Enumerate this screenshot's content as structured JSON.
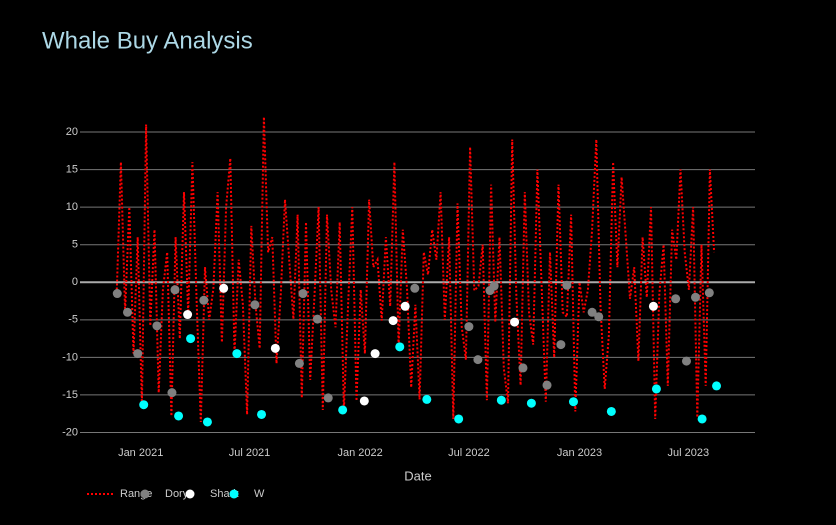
{
  "chart_data": {
    "type": "line",
    "title": "Whale Buy Analysis",
    "x_label": "Date",
    "xlim": [
      "2020-09-22",
      "2023-10-20"
    ],
    "xticks": [
      {
        "value": "2021-01-01",
        "label": "Jan 2021"
      },
      {
        "value": "2021-07-01",
        "label": "Jul 2021"
      },
      {
        "value": "2022-01-01",
        "label": "Jan 2022"
      },
      {
        "value": "2022-07-01",
        "label": "Jul 2022"
      },
      {
        "value": "2023-01-01",
        "label": "Jan 2023"
      },
      {
        "value": "2023-07-01",
        "label": "Jul 2023"
      }
    ],
    "ylim": [
      -21,
      22
    ],
    "yticks": [
      -20,
      -15,
      -10,
      -5,
      0,
      5,
      10,
      15,
      20
    ],
    "grid": true,
    "series": [
      {
        "name": "Range",
        "color": "#ff0000",
        "mode": "lines",
        "x": [
          "2020-11-22",
          "2020-11-29",
          "2020-12-06",
          "2020-12-13",
          "2020-12-20",
          "2020-12-27",
          "2021-01-03",
          "2021-01-10",
          "2021-01-17",
          "2021-01-24",
          "2021-01-31",
          "2021-02-07",
          "2021-02-14",
          "2021-02-21",
          "2021-02-28",
          "2021-03-07",
          "2021-03-14",
          "2021-03-21",
          "2021-03-28",
          "2021-04-04",
          "2021-04-11",
          "2021-04-18",
          "2021-04-25",
          "2021-05-02",
          "2021-05-09",
          "2021-05-16",
          "2021-05-23",
          "2021-05-30",
          "2021-06-06",
          "2021-06-13",
          "2021-06-20",
          "2021-06-27",
          "2021-07-04",
          "2021-07-11",
          "2021-07-18",
          "2021-07-25",
          "2021-08-01",
          "2021-08-08",
          "2021-08-15",
          "2021-08-22",
          "2021-08-29",
          "2021-09-05",
          "2021-09-12",
          "2021-09-19",
          "2021-09-26",
          "2021-10-03",
          "2021-10-10",
          "2021-10-17",
          "2021-10-24",
          "2021-10-31",
          "2021-11-07",
          "2021-11-14",
          "2021-11-21",
          "2021-11-28",
          "2021-12-05",
          "2021-12-12",
          "2021-12-19",
          "2021-12-26",
          "2022-01-02",
          "2022-01-09",
          "2022-01-16",
          "2022-01-23",
          "2022-01-30",
          "2022-02-06",
          "2022-02-13",
          "2022-02-20",
          "2022-02-27",
          "2022-03-06",
          "2022-03-13",
          "2022-03-20",
          "2022-03-27",
          "2022-04-03",
          "2022-04-10",
          "2022-04-17",
          "2022-04-24",
          "2022-05-01",
          "2022-05-08",
          "2022-05-15",
          "2022-05-22",
          "2022-05-29",
          "2022-06-05",
          "2022-06-12",
          "2022-06-19",
          "2022-06-26",
          "2022-07-03",
          "2022-07-10",
          "2022-07-17",
          "2022-07-24",
          "2022-07-31",
          "2022-08-07",
          "2022-08-14",
          "2022-08-21",
          "2022-08-28",
          "2022-09-04",
          "2022-09-11",
          "2022-09-18",
          "2022-09-25",
          "2022-10-02",
          "2022-10-09",
          "2022-10-16",
          "2022-10-23",
          "2022-10-30",
          "2022-11-06",
          "2022-11-13",
          "2022-11-20",
          "2022-11-27",
          "2022-12-04",
          "2022-12-11",
          "2022-12-18",
          "2022-12-25",
          "2023-01-01",
          "2023-01-08",
          "2023-01-15",
          "2023-01-22",
          "2023-01-29",
          "2023-02-05",
          "2023-02-12",
          "2023-02-19",
          "2023-02-26",
          "2023-03-05",
          "2023-03-12",
          "2023-03-19",
          "2023-03-26",
          "2023-04-02",
          "2023-04-09",
          "2023-04-16",
          "2023-04-23",
          "2023-04-30",
          "2023-05-07",
          "2023-05-14",
          "2023-05-21",
          "2023-05-28",
          "2023-06-04",
          "2023-06-11",
          "2023-06-18",
          "2023-06-25",
          "2023-07-02",
          "2023-07-09",
          "2023-07-16",
          "2023-07-23",
          "2023-07-30",
          "2023-08-06",
          "2023-08-13"
        ],
        "values": [
          -1.5,
          16,
          -4,
          10,
          -9.5,
          6,
          -16.3,
          21,
          -5.8,
          7,
          -14.7,
          -1,
          4,
          -17.8,
          6,
          -7.5,
          12,
          -4.3,
          16,
          -2.4,
          -18.6,
          2,
          -5,
          -0.8,
          12,
          -8,
          10,
          16.5,
          -9.5,
          3,
          -3,
          -17.6,
          7.5,
          -3,
          -8.8,
          22,
          4,
          6,
          -10.8,
          -1.5,
          11,
          3,
          -4.9,
          9,
          -15.4,
          8,
          -13,
          -2,
          10,
          -17,
          9,
          -1,
          -6,
          8,
          -17,
          -3,
          10,
          -15.8,
          -1,
          -9.5,
          11,
          2,
          3,
          -5.1,
          6,
          -3.2,
          16,
          -8.6,
          7,
          -0.8,
          -14,
          -3,
          -15.6,
          4,
          1,
          7,
          3,
          12,
          -5,
          6,
          -18.2,
          10.5,
          -5.9,
          -10.3,
          18,
          -1.1,
          -0.5,
          5,
          -15.7,
          13,
          -5.3,
          6,
          -11.4,
          -16.1,
          19,
          -2,
          -13.7,
          12,
          -4,
          -8.3,
          15,
          -0.4,
          -15.9,
          4,
          -10,
          13,
          -4,
          -4.6,
          9,
          -17.2,
          0,
          -4,
          -1,
          7,
          19,
          -3.2,
          -14.2,
          -7,
          16,
          2,
          14,
          6,
          -2.2,
          2,
          -10.5,
          6,
          -2,
          10,
          -18.2,
          -1.4,
          5,
          -13.8,
          7,
          3,
          15,
          4,
          -1,
          10,
          -18,
          5,
          -13.8,
          15,
          4
        ]
      },
      {
        "name": "Dory",
        "color": "#808080",
        "mode": "markers",
        "x": [
          "2020-11-23",
          "2020-12-10",
          "2020-12-27",
          "2021-01-28",
          "2021-02-22",
          "2021-02-27",
          "2021-04-16",
          "2021-07-10",
          "2021-09-22",
          "2021-09-28",
          "2021-10-22",
          "2021-11-09",
          "2022-04-02",
          "2022-07-01",
          "2022-07-16",
          "2022-08-05",
          "2022-08-12",
          "2022-09-29",
          "2022-11-08",
          "2022-12-01",
          "2022-12-11",
          "2023-01-22",
          "2023-02-02",
          "2023-06-10",
          "2023-06-28",
          "2023-07-13",
          "2023-08-05"
        ],
        "values": [
          -1.5,
          -4,
          -9.5,
          -5.8,
          -14.7,
          -1,
          -2.4,
          -3,
          -10.8,
          -1.5,
          -4.9,
          -15.4,
          -0.8,
          -5.9,
          -10.3,
          -1.1,
          -0.5,
          -11.4,
          -13.7,
          -8.3,
          -0.4,
          -4,
          -4.6,
          -2.2,
          -10.5,
          -2,
          -1.4
        ]
      },
      {
        "name": "Shark",
        "color": "#ffffff",
        "mode": "markers",
        "x": [
          "2021-03-20",
          "2021-05-19",
          "2021-08-13",
          "2022-01-08",
          "2022-01-26",
          "2022-02-25",
          "2022-03-17",
          "2022-09-15",
          "2023-05-04"
        ],
        "values": [
          -4.3,
          -0.8,
          -8.8,
          -15.8,
          -9.5,
          -5.1,
          -3.2,
          -5.3,
          -3.2
        ]
      },
      {
        "name": "W",
        "color": "#00ffff",
        "mode": "markers",
        "x": [
          "2021-01-06",
          "2021-03-05",
          "2021-03-25",
          "2021-04-22",
          "2021-06-10",
          "2021-07-21",
          "2021-12-03",
          "2022-03-08",
          "2022-04-22",
          "2022-06-14",
          "2022-08-24",
          "2022-10-13",
          "2022-12-22",
          "2023-02-23",
          "2023-05-09",
          "2023-07-24",
          "2023-08-17"
        ],
        "values": [
          -16.3,
          -17.8,
          -7.5,
          -18.6,
          -9.5,
          -17.6,
          -17,
          -8.6,
          -15.6,
          -18.2,
          -15.7,
          -16.1,
          -15.9,
          -17.2,
          -14.2,
          -18.2,
          -13.8
        ]
      }
    ]
  }
}
